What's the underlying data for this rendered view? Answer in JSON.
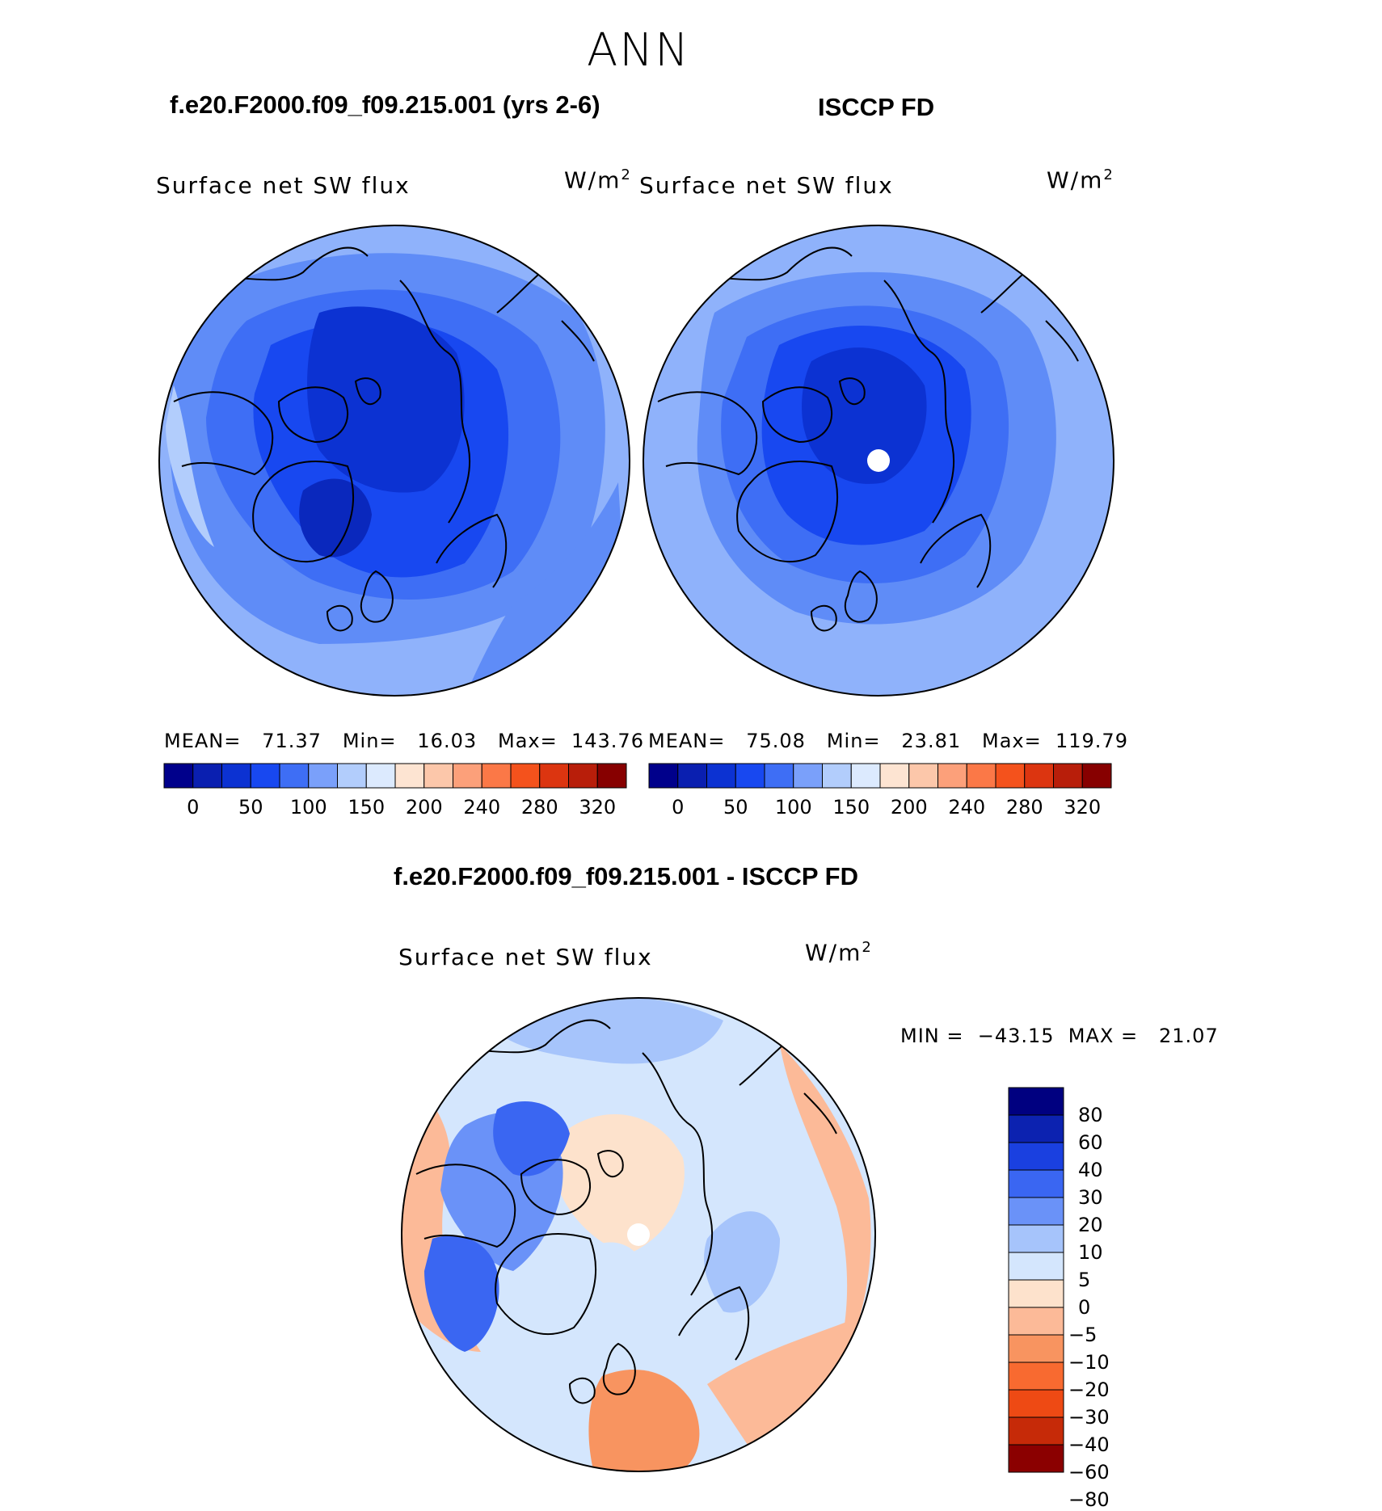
{
  "title": "ANN",
  "hbar_colors": [
    "#00008b",
    "#0a1fb0",
    "#0c32d2",
    "#1848f0",
    "#3e6ef5",
    "#7aa0fa",
    "#b2cdfc",
    "#dceafe",
    "#fde4d2",
    "#fcc7aa",
    "#fca07a",
    "#fb7847",
    "#f4521c",
    "#dc3510",
    "#b81e0a",
    "#870000"
  ],
  "hbar_ticks": [
    "0",
    "50",
    "100",
    "150",
    "200",
    "240",
    "280",
    "320"
  ],
  "vbar_colors": [
    "#000080",
    "#0c22b0",
    "#1a40e0",
    "#3a66f2",
    "#6a92f8",
    "#a6c4fb",
    "#d4e6fd",
    "#fde2cc",
    "#fcba98",
    "#f89460",
    "#f86a30",
    "#ee4a14",
    "#c62a08",
    "#8b0000"
  ],
  "vbar_ticks": [
    "80",
    "60",
    "40",
    "30",
    "20",
    "10",
    "5",
    "0",
    "−5",
    "−10",
    "−20",
    "−30",
    "−40",
    "−60",
    "−80"
  ],
  "panels": {
    "model": {
      "case_title": "f.e20.F2000.f09_f09.215.001 (yrs 2-6)",
      "variable": "Surface net SW flux",
      "units": "W/m",
      "units_exp": "2",
      "stats": "MEAN=   71.37   Min=   16.03   Max=  143.76"
    },
    "obs": {
      "case_title": "ISCCP FD",
      "variable": "Surface net SW flux",
      "units": "W/m",
      "units_exp": "2",
      "stats": "MEAN=   75.08   Min=   23.81   Max=  119.79"
    },
    "diff": {
      "case_title": "f.e20.F2000.f09_f09.215.001 - ISCCP FD",
      "variable": "Surface net SW flux",
      "units": "W/m",
      "units_exp": "2",
      "stats": "MIN =  −43.15  MAX =   21.07"
    }
  },
  "chart_data": [
    {
      "type": "polar-stereographic contour map",
      "title": "f.e20.F2000.f09_f09.215.001 (yrs 2-6)",
      "field": "Surface net SW flux",
      "units": "W/m2",
      "mean": 71.37,
      "min": 16.03,
      "max": 143.76,
      "contour_levels": [
        0,
        50,
        100,
        150,
        200,
        240,
        280,
        320
      ]
    },
    {
      "type": "polar-stereographic contour map",
      "title": "ISCCP FD",
      "field": "Surface net SW flux",
      "units": "W/m2",
      "mean": 75.08,
      "min": 23.81,
      "max": 119.79,
      "contour_levels": [
        0,
        50,
        100,
        150,
        200,
        240,
        280,
        320
      ]
    },
    {
      "type": "polar-stereographic contour map",
      "title": "f.e20.F2000.f09_f09.215.001 - ISCCP FD",
      "field": "Surface net SW flux",
      "units": "W/m2",
      "min": -43.15,
      "max": 21.07,
      "contour_levels": [
        -80,
        -60,
        -40,
        -30,
        -20,
        -10,
        -5,
        0,
        5,
        10,
        20,
        30,
        40,
        60,
        80
      ]
    }
  ]
}
